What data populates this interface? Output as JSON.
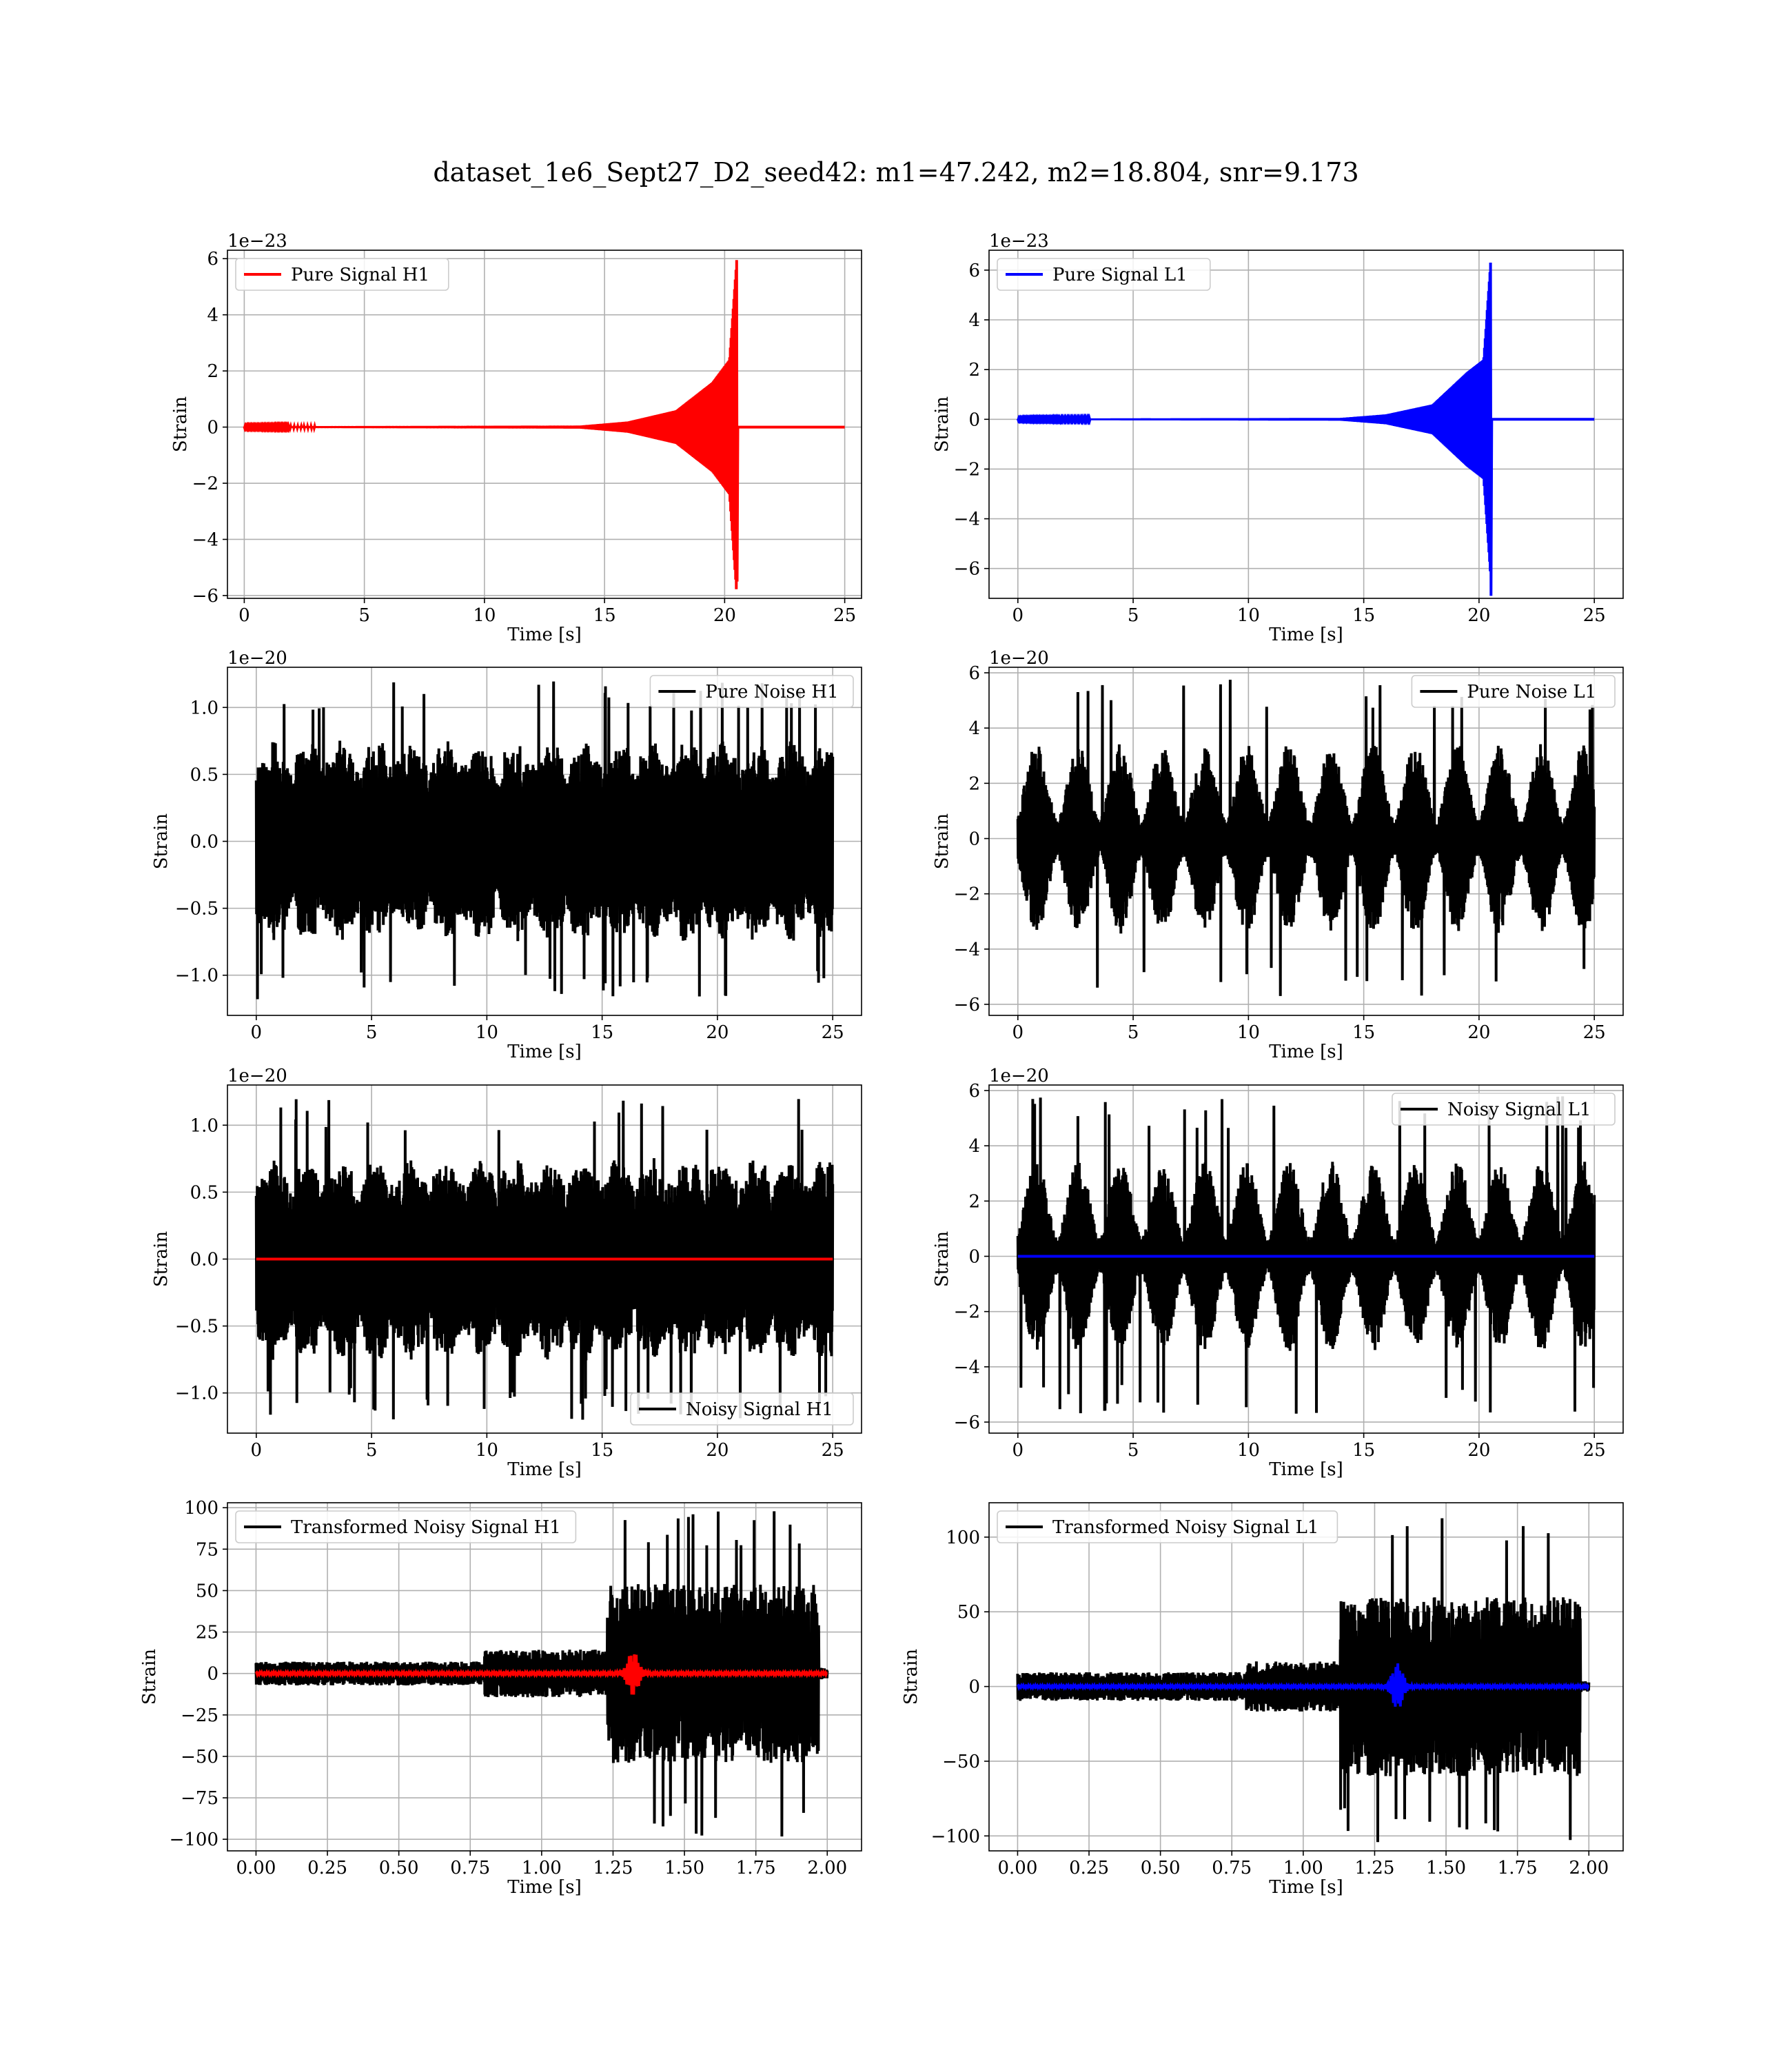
{
  "figure": {
    "title": "dataset_1e6_Sept27_D2_seed42: m1=47.242, m2=18.804, snr=9.173"
  },
  "chart_data": [
    {
      "id": "pure_signal_h1",
      "type": "line",
      "title": "",
      "xlabel": "Time [s]",
      "ylabel": "Strain",
      "offset_text": "1e−23",
      "xlim": [
        -0.7,
        25.7
      ],
      "ylim": [
        -6.1,
        6.3
      ],
      "xticks": [
        0,
        5,
        10,
        15,
        20,
        25
      ],
      "xtick_labels": [
        "0",
        "5",
        "10",
        "15",
        "20",
        "25"
      ],
      "yticks": [
        -6,
        -4,
        -2,
        0,
        2,
        4,
        6
      ],
      "ytick_labels": [
        "−6",
        "−4",
        "−2",
        "0",
        "2",
        "4",
        "6"
      ],
      "grid": true,
      "legend_loc": "top-left",
      "series": [
        {
          "name": "Pure Signal H1",
          "color": "#ff0000",
          "kind": "chirp",
          "x_range": [
            0,
            25
          ],
          "merger_time": 20.5,
          "peak_pos": 5.95,
          "peak_neg": -5.5,
          "env_knots": [
            [
              0,
              0.02
            ],
            [
              14,
              0.05
            ],
            [
              16,
              0.2
            ],
            [
              18,
              0.6
            ],
            [
              19.5,
              1.6
            ],
            [
              20.2,
              2.4
            ],
            [
              20.5,
              5.95
            ]
          ]
        }
      ]
    },
    {
      "id": "pure_signal_l1",
      "type": "line",
      "title": "",
      "xlabel": "Time [s]",
      "ylabel": "Strain",
      "offset_text": "1e−23",
      "xlim": [
        -1.25,
        26.25
      ],
      "ylim": [
        -7.2,
        6.8
      ],
      "xticks": [
        0,
        5,
        10,
        15,
        20,
        25
      ],
      "xtick_labels": [
        "0",
        "5",
        "10",
        "15",
        "20",
        "25"
      ],
      "yticks": [
        -6,
        -4,
        -2,
        0,
        2,
        4,
        6
      ],
      "ytick_labels": [
        "−6",
        "−4",
        "−2",
        "0",
        "2",
        "4",
        "6"
      ],
      "grid": true,
      "legend_loc": "top-left",
      "series": [
        {
          "name": "Pure Signal L1",
          "color": "#0000ff",
          "kind": "chirp",
          "x_range": [
            0,
            25
          ],
          "merger_time": 20.5,
          "peak_pos": 6.3,
          "peak_neg": -7.1,
          "env_knots": [
            [
              0,
              0.02
            ],
            [
              14,
              0.05
            ],
            [
              16,
              0.2
            ],
            [
              18,
              0.6
            ],
            [
              19.5,
              1.9
            ],
            [
              20.2,
              2.4
            ],
            [
              20.5,
              6.3
            ]
          ]
        }
      ]
    },
    {
      "id": "pure_noise_h1",
      "type": "line",
      "title": "",
      "xlabel": "Time [s]",
      "ylabel": "Strain",
      "offset_text": "1e−20",
      "xlim": [
        -1.25,
        26.25
      ],
      "ylim": [
        -1.3,
        1.3
      ],
      "xticks": [
        0,
        5,
        10,
        15,
        20,
        25
      ],
      "xtick_labels": [
        "0",
        "5",
        "10",
        "15",
        "20",
        "25"
      ],
      "yticks": [
        -1.0,
        -0.5,
        0.0,
        0.5,
        1.0
      ],
      "ytick_labels": [
        "−1.0",
        "−0.5",
        "0.0",
        "0.5",
        "1.0"
      ],
      "grid": true,
      "legend_loc": "top-right",
      "series": [
        {
          "name": "Pure Noise H1",
          "color": "#000000",
          "kind": "noise",
          "x_range": [
            0,
            25
          ],
          "amplitude": 0.7,
          "peak": 1.2,
          "envelope": "h1"
        }
      ]
    },
    {
      "id": "pure_noise_l1",
      "type": "line",
      "title": "",
      "xlabel": "Time [s]",
      "ylabel": "Strain",
      "offset_text": "1e−20",
      "xlim": [
        -1.25,
        26.25
      ],
      "ylim": [
        -6.4,
        6.2
      ],
      "xticks": [
        0,
        5,
        10,
        15,
        20,
        25
      ],
      "xtick_labels": [
        "0",
        "5",
        "10",
        "15",
        "20",
        "25"
      ],
      "yticks": [
        -6,
        -4,
        -2,
        0,
        2,
        4,
        6
      ],
      "ytick_labels": [
        "−6",
        "−4",
        "−2",
        "0",
        "2",
        "4",
        "6"
      ],
      "grid": true,
      "legend_loc": "top-right",
      "series": [
        {
          "name": "Pure Noise L1",
          "color": "#000000",
          "kind": "noise",
          "x_range": [
            0,
            25
          ],
          "amplitude": 3.0,
          "peak": 5.8,
          "envelope": "l1"
        }
      ]
    },
    {
      "id": "noisy_signal_h1",
      "type": "line",
      "title": "",
      "xlabel": "Time [s]",
      "ylabel": "Strain",
      "offset_text": "1e−20",
      "xlim": [
        -1.25,
        26.25
      ],
      "ylim": [
        -1.3,
        1.3
      ],
      "xticks": [
        0,
        5,
        10,
        15,
        20,
        25
      ],
      "xtick_labels": [
        "0",
        "5",
        "10",
        "15",
        "20",
        "25"
      ],
      "yticks": [
        -1.0,
        -0.5,
        0.0,
        0.5,
        1.0
      ],
      "ytick_labels": [
        "−1.0",
        "−0.5",
        "0.0",
        "0.5",
        "1.0"
      ],
      "grid": true,
      "legend_loc": "bottom-right",
      "series": [
        {
          "name": "Noisy Signal H1",
          "color": "#000000",
          "kind": "noise",
          "x_range": [
            0,
            25
          ],
          "amplitude": 0.7,
          "peak": 1.2,
          "envelope": "h1"
        },
        {
          "color": "#ff0000",
          "kind": "flat",
          "x_range": [
            0,
            25
          ],
          "value": 0
        }
      ]
    },
    {
      "id": "noisy_signal_l1",
      "type": "line",
      "title": "",
      "xlabel": "Time [s]",
      "ylabel": "Strain",
      "offset_text": "1e−20",
      "xlim": [
        -1.25,
        26.25
      ],
      "ylim": [
        -6.4,
        6.2
      ],
      "xticks": [
        0,
        5,
        10,
        15,
        20,
        25
      ],
      "xtick_labels": [
        "0",
        "5",
        "10",
        "15",
        "20",
        "25"
      ],
      "yticks": [
        -6,
        -4,
        -2,
        0,
        2,
        4,
        6
      ],
      "ytick_labels": [
        "−6",
        "−4",
        "−2",
        "0",
        "2",
        "4",
        "6"
      ],
      "grid": true,
      "legend_loc": "top-right",
      "series": [
        {
          "name": "Noisy Signal L1",
          "color": "#000000",
          "kind": "noise",
          "x_range": [
            0,
            25
          ],
          "amplitude": 3.0,
          "peak": 5.8,
          "envelope": "l1"
        },
        {
          "color": "#0000ff",
          "kind": "flat",
          "x_range": [
            0,
            25
          ],
          "value": 0
        }
      ]
    },
    {
      "id": "transformed_h1",
      "type": "line",
      "title": "",
      "xlabel": "Time [s]",
      "ylabel": "Strain",
      "offset_text": "",
      "xlim": [
        -0.1,
        2.12
      ],
      "ylim": [
        -107,
        103
      ],
      "xticks": [
        0.0,
        0.25,
        0.5,
        0.75,
        1.0,
        1.25,
        1.5,
        1.75,
        2.0
      ],
      "xtick_labels": [
        "0.00",
        "0.25",
        "0.50",
        "0.75",
        "1.00",
        "1.25",
        "1.50",
        "1.75",
        "2.00"
      ],
      "yticks": [
        -100,
        -75,
        -50,
        -25,
        0,
        25,
        50,
        75,
        100
      ],
      "ytick_labels": [
        "−100",
        "−75",
        "−50",
        "−25",
        "0",
        "25",
        "50",
        "75",
        "100"
      ],
      "grid": true,
      "legend_loc": "top-left",
      "series": [
        {
          "name": "Transformed Noisy Signal H1",
          "color": "#000000",
          "kind": "whitened",
          "x_range": [
            0,
            2.0
          ],
          "stages": [
            [
              0,
              0.8,
              6
            ],
            [
              0.8,
              1.23,
              12
            ],
            [
              1.23,
              1.97,
              45
            ]
          ],
          "spike_max": 98,
          "spike_min": -102
        },
        {
          "color": "#ff0000",
          "kind": "burst",
          "x_range": [
            0,
            2.0
          ],
          "center": 1.32,
          "amp": 13
        }
      ]
    },
    {
      "id": "transformed_l1",
      "type": "line",
      "title": "",
      "xlabel": "Time [s]",
      "ylabel": "Strain",
      "offset_text": "",
      "xlim": [
        -0.1,
        2.12
      ],
      "ylim": [
        -110,
        123
      ],
      "xticks": [
        0.0,
        0.25,
        0.5,
        0.75,
        1.0,
        1.25,
        1.5,
        1.75,
        2.0
      ],
      "xtick_labels": [
        "0.00",
        "0.25",
        "0.50",
        "0.75",
        "1.00",
        "1.25",
        "1.50",
        "1.75",
        "2.00"
      ],
      "yticks": [
        -100,
        -50,
        0,
        50,
        100
      ],
      "ytick_labels": [
        "−100",
        "−50",
        "0",
        "50",
        "100"
      ],
      "grid": true,
      "legend_loc": "top-left",
      "series": [
        {
          "name": "Transformed Noisy Signal L1",
          "color": "#000000",
          "kind": "whitened",
          "x_range": [
            0,
            2.0
          ],
          "stages": [
            [
              0,
              0.8,
              8
            ],
            [
              0.8,
              1.13,
              14
            ],
            [
              1.13,
              1.97,
              50
            ]
          ],
          "spike_max": 118,
          "spike_min": -106
        },
        {
          "color": "#0000ff",
          "kind": "burst",
          "x_range": [
            0,
            2.0
          ],
          "center": 1.33,
          "amp": 15
        }
      ]
    }
  ]
}
